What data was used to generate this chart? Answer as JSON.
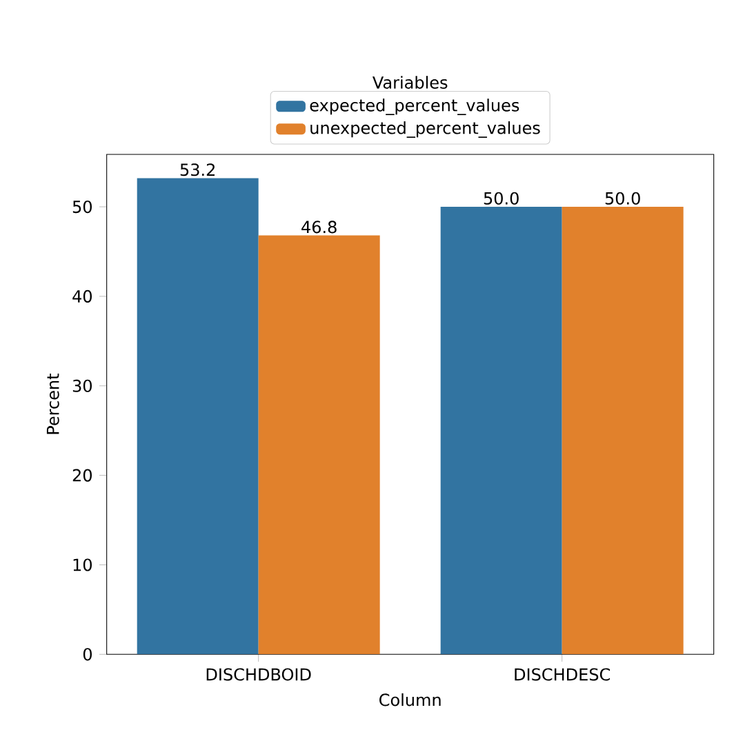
{
  "chart_data": {
    "type": "bar",
    "xlabel": "Column",
    "ylabel": "Percent",
    "legend_title": "Variables",
    "categories": [
      "DISCHDBOID",
      "DISCHDESC"
    ],
    "series": [
      {
        "name": "expected_percent_values",
        "color": "#3274a1",
        "values": [
          53.2,
          50.0
        ],
        "value_labels": [
          "53.2",
          "50.0"
        ]
      },
      {
        "name": "unexpected_percent_values",
        "color": "#e1812c",
        "values": [
          46.8,
          50.0
        ],
        "value_labels": [
          "46.8",
          "50.0"
        ]
      }
    ],
    "ylim": [
      0,
      55.86
    ],
    "yticks": [
      0,
      10,
      20,
      30,
      40,
      50
    ],
    "legend": "top",
    "grid": false
  }
}
